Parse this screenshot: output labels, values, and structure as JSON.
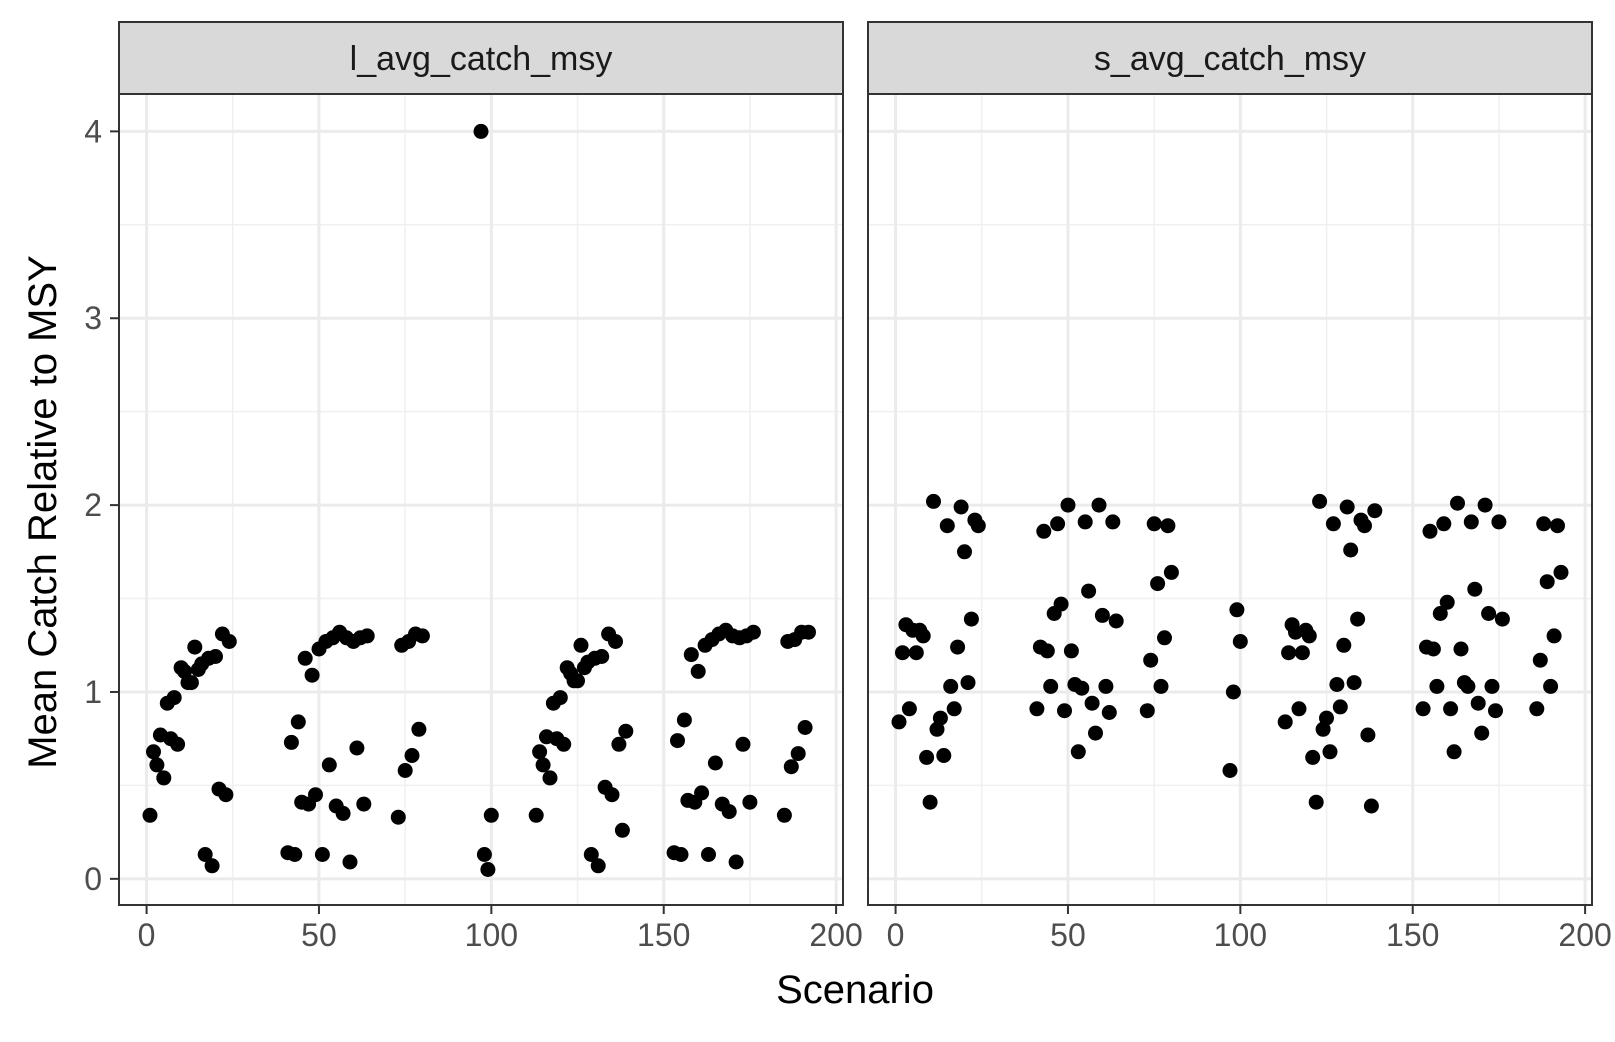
{
  "chart_data": {
    "type": "scatter",
    "xlabel": "Scenario",
    "ylabel": "Mean Catch Relative to MSY",
    "xlim": [
      -8,
      202
    ],
    "ylim": [
      -0.14,
      4.2
    ],
    "x_ticks": [
      0,
      50,
      100,
      150,
      200
    ],
    "y_ticks": [
      0,
      1,
      2,
      3,
      4
    ],
    "grid": true,
    "legend": "none",
    "point_color": "#000000",
    "panels": [
      {
        "name": "l_avg_catch_msy",
        "points": [
          [
            1,
            0.34
          ],
          [
            2,
            0.68
          ],
          [
            3,
            0.61
          ],
          [
            4,
            0.77
          ],
          [
            5,
            0.54
          ],
          [
            6,
            0.94
          ],
          [
            7,
            0.75
          ],
          [
            8,
            0.97
          ],
          [
            9,
            0.72
          ],
          [
            10,
            1.13
          ],
          [
            11,
            1.11
          ],
          [
            12,
            1.05
          ],
          [
            13,
            1.05
          ],
          [
            14,
            1.24
          ],
          [
            15,
            1.12
          ],
          [
            16,
            1.15
          ],
          [
            17,
            0.13
          ],
          [
            18,
            1.18
          ],
          [
            19,
            0.07
          ],
          [
            20,
            1.19
          ],
          [
            21,
            0.48
          ],
          [
            22,
            1.31
          ],
          [
            23,
            0.45
          ],
          [
            24,
            1.27
          ],
          [
            41,
            0.14
          ],
          [
            42,
            0.73
          ],
          [
            43,
            0.13
          ],
          [
            44,
            0.84
          ],
          [
            45,
            0.41
          ],
          [
            46,
            1.18
          ],
          [
            47,
            0.4
          ],
          [
            48,
            1.09
          ],
          [
            49,
            0.45
          ],
          [
            50,
            1.23
          ],
          [
            51,
            0.13
          ],
          [
            52,
            1.27
          ],
          [
            53,
            0.61
          ],
          [
            54,
            1.29
          ],
          [
            55,
            0.39
          ],
          [
            56,
            1.32
          ],
          [
            57,
            0.35
          ],
          [
            58,
            1.29
          ],
          [
            59,
            0.09
          ],
          [
            60,
            1.27
          ],
          [
            61,
            0.7
          ],
          [
            62,
            1.29
          ],
          [
            63,
            0.4
          ],
          [
            64,
            1.3
          ],
          [
            73,
            0.33
          ],
          [
            74,
            1.25
          ],
          [
            75,
            0.58
          ],
          [
            76,
            1.27
          ],
          [
            77,
            0.66
          ],
          [
            78,
            1.31
          ],
          [
            79,
            0.8
          ],
          [
            80,
            1.3
          ],
          [
            97,
            4.0
          ],
          [
            98,
            0.13
          ],
          [
            99,
            0.05
          ],
          [
            100,
            0.34
          ],
          [
            113,
            0.34
          ],
          [
            114,
            0.68
          ],
          [
            115,
            0.61
          ],
          [
            116,
            0.76
          ],
          [
            117,
            0.54
          ],
          [
            118,
            0.94
          ],
          [
            119,
            0.75
          ],
          [
            120,
            0.97
          ],
          [
            121,
            0.72
          ],
          [
            122,
            1.13
          ],
          [
            123,
            1.1
          ],
          [
            124,
            1.06
          ],
          [
            125,
            1.06
          ],
          [
            126,
            1.25
          ],
          [
            127,
            1.13
          ],
          [
            128,
            1.16
          ],
          [
            129,
            0.13
          ],
          [
            130,
            1.18
          ],
          [
            131,
            0.07
          ],
          [
            132,
            1.19
          ],
          [
            133,
            0.49
          ],
          [
            134,
            1.31
          ],
          [
            135,
            0.45
          ],
          [
            136,
            1.27
          ],
          [
            137,
            0.72
          ],
          [
            138,
            0.26
          ],
          [
            139,
            0.79
          ],
          [
            153,
            0.14
          ],
          [
            154,
            0.74
          ],
          [
            155,
            0.13
          ],
          [
            156,
            0.85
          ],
          [
            157,
            0.42
          ],
          [
            158,
            1.2
          ],
          [
            159,
            0.41
          ],
          [
            160,
            1.11
          ],
          [
            161,
            0.46
          ],
          [
            162,
            1.25
          ],
          [
            163,
            0.13
          ],
          [
            164,
            1.28
          ],
          [
            165,
            0.62
          ],
          [
            166,
            1.31
          ],
          [
            167,
            0.4
          ],
          [
            168,
            1.33
          ],
          [
            169,
            0.36
          ],
          [
            170,
            1.3
          ],
          [
            171,
            0.09
          ],
          [
            172,
            1.29
          ],
          [
            173,
            0.72
          ],
          [
            174,
            1.3
          ],
          [
            175,
            0.41
          ],
          [
            176,
            1.32
          ],
          [
            185,
            0.34
          ],
          [
            186,
            1.27
          ],
          [
            187,
            0.6
          ],
          [
            188,
            1.28
          ],
          [
            189,
            0.67
          ],
          [
            190,
            1.32
          ],
          [
            191,
            0.81
          ],
          [
            192,
            1.32
          ]
        ]
      },
      {
        "name": "s_avg_catch_msy",
        "points": [
          [
            1,
            0.84
          ],
          [
            2,
            1.21
          ],
          [
            3,
            1.36
          ],
          [
            4,
            0.91
          ],
          [
            5,
            1.33
          ],
          [
            6,
            1.21
          ],
          [
            7,
            1.33
          ],
          [
            8,
            1.3
          ],
          [
            9,
            0.65
          ],
          [
            10,
            0.41
          ],
          [
            11,
            2.02
          ],
          [
            12,
            0.8
          ],
          [
            13,
            0.86
          ],
          [
            14,
            0.66
          ],
          [
            15,
            1.89
          ],
          [
            16,
            1.03
          ],
          [
            17,
            0.91
          ],
          [
            18,
            1.24
          ],
          [
            19,
            1.99
          ],
          [
            20,
            1.75
          ],
          [
            21,
            1.05
          ],
          [
            22,
            1.39
          ],
          [
            23,
            1.92
          ],
          [
            24,
            1.89
          ],
          [
            41,
            0.91
          ],
          [
            42,
            1.24
          ],
          [
            43,
            1.86
          ],
          [
            44,
            1.22
          ],
          [
            45,
            1.03
          ],
          [
            46,
            1.42
          ],
          [
            47,
            1.9
          ],
          [
            48,
            1.47
          ],
          [
            49,
            0.9
          ],
          [
            50,
            2.0
          ],
          [
            51,
            1.22
          ],
          [
            52,
            1.04
          ],
          [
            53,
            0.68
          ],
          [
            54,
            1.02
          ],
          [
            55,
            1.91
          ],
          [
            56,
            1.54
          ],
          [
            57,
            0.94
          ],
          [
            58,
            0.78
          ],
          [
            59,
            2.0
          ],
          [
            60,
            1.41
          ],
          [
            61,
            1.03
          ],
          [
            62,
            0.89
          ],
          [
            63,
            1.91
          ],
          [
            64,
            1.38
          ],
          [
            73,
            0.9
          ],
          [
            74,
            1.17
          ],
          [
            75,
            1.9
          ],
          [
            76,
            1.58
          ],
          [
            77,
            1.03
          ],
          [
            78,
            1.29
          ],
          [
            79,
            1.89
          ],
          [
            80,
            1.64
          ],
          [
            97,
            0.58
          ],
          [
            98,
            1.0
          ],
          [
            99,
            1.44
          ],
          [
            100,
            1.27
          ],
          [
            113,
            0.84
          ],
          [
            114,
            1.21
          ],
          [
            115,
            1.36
          ],
          [
            116,
            1.32
          ],
          [
            117,
            0.91
          ],
          [
            118,
            1.21
          ],
          [
            119,
            1.33
          ],
          [
            120,
            1.3
          ],
          [
            121,
            0.65
          ],
          [
            122,
            0.41
          ],
          [
            123,
            2.02
          ],
          [
            124,
            0.8
          ],
          [
            125,
            0.86
          ],
          [
            126,
            0.68
          ],
          [
            127,
            1.9
          ],
          [
            128,
            1.04
          ],
          [
            129,
            0.92
          ],
          [
            130,
            1.25
          ],
          [
            131,
            1.99
          ],
          [
            132,
            1.76
          ],
          [
            133,
            1.05
          ],
          [
            134,
            1.39
          ],
          [
            135,
            1.92
          ],
          [
            136,
            1.89
          ],
          [
            137,
            0.77
          ],
          [
            138,
            0.39
          ],
          [
            139,
            1.97
          ],
          [
            153,
            0.91
          ],
          [
            154,
            1.24
          ],
          [
            155,
            1.86
          ],
          [
            156,
            1.23
          ],
          [
            157,
            1.03
          ],
          [
            158,
            1.42
          ],
          [
            159,
            1.9
          ],
          [
            160,
            1.48
          ],
          [
            161,
            0.91
          ],
          [
            162,
            0.68
          ],
          [
            163,
            2.01
          ],
          [
            164,
            1.23
          ],
          [
            165,
            1.05
          ],
          [
            166,
            1.03
          ],
          [
            167,
            1.91
          ],
          [
            168,
            1.55
          ],
          [
            169,
            0.94
          ],
          [
            170,
            0.78
          ],
          [
            171,
            2.0
          ],
          [
            172,
            1.42
          ],
          [
            173,
            1.03
          ],
          [
            174,
            0.9
          ],
          [
            175,
            1.91
          ],
          [
            176,
            1.39
          ],
          [
            186,
            0.91
          ],
          [
            187,
            1.17
          ],
          [
            188,
            1.9
          ],
          [
            189,
            1.59
          ],
          [
            190,
            1.03
          ],
          [
            191,
            1.3
          ],
          [
            192,
            1.89
          ],
          [
            193,
            1.64
          ]
        ]
      }
    ]
  }
}
